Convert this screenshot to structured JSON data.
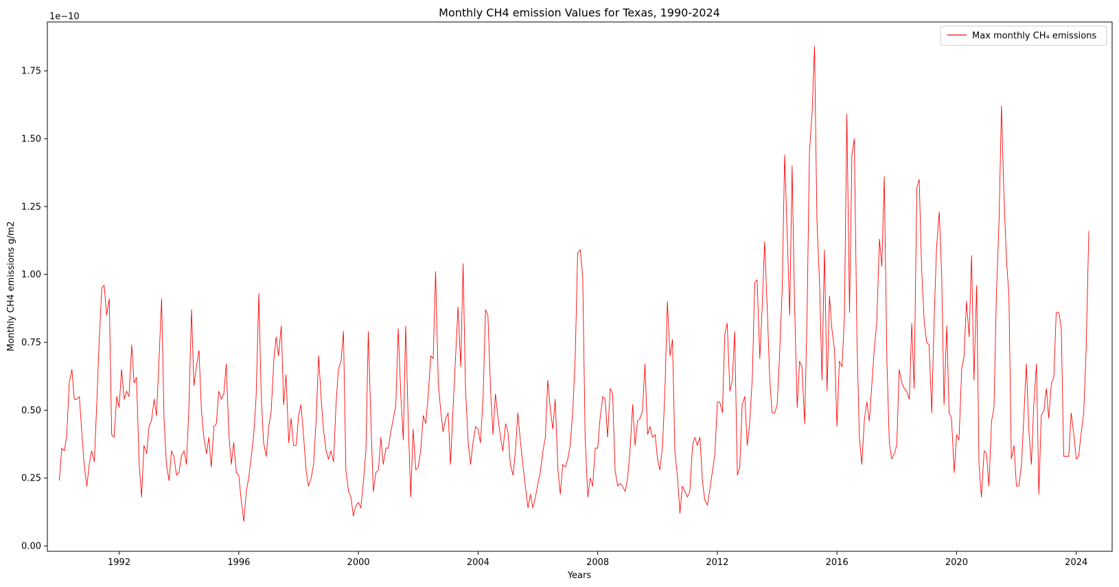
{
  "chart_data": {
    "type": "line",
    "title": "Monthly CH4 emission Values for Texas, 1990-2024",
    "xlabel": "Years",
    "ylabel": "Monthly CH4 emissions g/m2",
    "y_offset_label": "1e−10",
    "xlim": [
      1989.6,
      2025.2
    ],
    "ylim": [
      -0.02,
      1.93
    ],
    "x_ticks": [
      1992,
      1996,
      2000,
      2004,
      2008,
      2012,
      2016,
      2020,
      2024
    ],
    "y_ticks": [
      0.0,
      0.25,
      0.5,
      0.75,
      1.0,
      1.25,
      1.5,
      1.75
    ],
    "y_tick_labels": [
      "0.00",
      "0.25",
      "0.50",
      "0.75",
      "1.00",
      "1.25",
      "1.50",
      "1.75"
    ],
    "grid": false,
    "legend_position": "top-right",
    "series": [
      {
        "name": "Max monthly CH₄ emissions",
        "color": "#ff0000",
        "x": [
          1990.0,
          1990.08,
          1990.17,
          1990.25,
          1990.33,
          1990.42,
          1990.5,
          1990.58,
          1990.67,
          1990.75,
          1990.83,
          1990.92,
          1991.0,
          1991.08,
          1991.17,
          1991.25,
          1991.33,
          1991.42,
          1991.5,
          1991.58,
          1991.67,
          1991.75,
          1991.83,
          1991.92,
          1992.0,
          1992.08,
          1992.17,
          1992.25,
          1992.33,
          1992.42,
          1992.5,
          1992.58,
          1992.67,
          1992.75,
          1992.83,
          1992.92,
          1993.0,
          1993.08,
          1993.17,
          1993.25,
          1993.33,
          1993.42,
          1993.5,
          1993.58,
          1993.67,
          1993.75,
          1993.83,
          1993.92,
          1994.0,
          1994.08,
          1994.17,
          1994.25,
          1994.33,
          1994.42,
          1994.5,
          1994.58,
          1994.67,
          1994.75,
          1994.83,
          1994.92,
          1995.0,
          1995.08,
          1995.17,
          1995.25,
          1995.33,
          1995.42,
          1995.5,
          1995.58,
          1995.67,
          1995.75,
          1995.83,
          1995.92,
          1996.0,
          1996.08,
          1996.17,
          1996.25,
          1996.33,
          1996.42,
          1996.5,
          1996.58,
          1996.67,
          1996.75,
          1996.83,
          1996.92,
          1997.0,
          1997.08,
          1997.17,
          1997.25,
          1997.33,
          1997.42,
          1997.5,
          1997.58,
          1997.67,
          1997.75,
          1997.83,
          1997.92,
          1998.0,
          1998.08,
          1998.17,
          1998.25,
          1998.33,
          1998.42,
          1998.5,
          1998.58,
          1998.67,
          1998.75,
          1998.83,
          1998.92,
          1999.0,
          1999.08,
          1999.17,
          1999.25,
          1999.33,
          1999.42,
          1999.5,
          1999.58,
          1999.67,
          1999.75,
          1999.83,
          1999.92,
          2000.0,
          2000.08,
          2000.17,
          2000.25,
          2000.33,
          2000.42,
          2000.5,
          2000.58,
          2000.67,
          2000.75,
          2000.83,
          2000.92,
          2001.0,
          2001.08,
          2001.17,
          2001.25,
          2001.33,
          2001.42,
          2001.5,
          2001.58,
          2001.67,
          2001.75,
          2001.83,
          2001.92,
          2002.0,
          2002.08,
          2002.17,
          2002.25,
          2002.33,
          2002.42,
          2002.5,
          2002.58,
          2002.67,
          2002.75,
          2002.83,
          2002.92,
          2003.0,
          2003.08,
          2003.17,
          2003.25,
          2003.33,
          2003.42,
          2003.5,
          2003.58,
          2003.67,
          2003.75,
          2003.83,
          2003.92,
          2004.0,
          2004.08,
          2004.17,
          2004.25,
          2004.33,
          2004.42,
          2004.5,
          2004.58,
          2004.67,
          2004.75,
          2004.83,
          2004.92,
          2005.0,
          2005.08,
          2005.17,
          2005.25,
          2005.33,
          2005.42,
          2005.5,
          2005.58,
          2005.67,
          2005.75,
          2005.83,
          2005.92,
          2006.0,
          2006.08,
          2006.17,
          2006.25,
          2006.33,
          2006.42,
          2006.5,
          2006.58,
          2006.67,
          2006.75,
          2006.83,
          2006.92,
          2007.0,
          2007.08,
          2007.17,
          2007.25,
          2007.33,
          2007.42,
          2007.5,
          2007.58,
          2007.67,
          2007.75,
          2007.83,
          2007.92,
          2008.0,
          2008.08,
          2008.17,
          2008.25,
          2008.33,
          2008.42,
          2008.5,
          2008.58,
          2008.67,
          2008.75,
          2008.83,
          2008.92,
          2009.0,
          2009.08,
          2009.17,
          2009.25,
          2009.33,
          2009.42,
          2009.5,
          2009.58,
          2009.67,
          2009.75,
          2009.83,
          2009.92,
          2010.0,
          2010.08,
          2010.17,
          2010.25,
          2010.33,
          2010.42,
          2010.5,
          2010.58,
          2010.67,
          2010.75,
          2010.83,
          2010.92,
          2011.0,
          2011.08,
          2011.17,
          2011.25,
          2011.33,
          2011.42,
          2011.5,
          2011.58,
          2011.67,
          2011.75,
          2011.83,
          2011.92,
          2012.0,
          2012.08,
          2012.17,
          2012.25,
          2012.33,
          2012.42,
          2012.5,
          2012.58,
          2012.67,
          2012.75,
          2012.83,
          2012.92,
          2013.0,
          2013.08,
          2013.17,
          2013.25,
          2013.33,
          2013.42,
          2013.5,
          2013.58,
          2013.67,
          2013.75,
          2013.83,
          2013.92,
          2014.0,
          2014.08,
          2014.17,
          2014.25,
          2014.33,
          2014.42,
          2014.5,
          2014.58,
          2014.67,
          2014.75,
          2014.83,
          2014.92,
          2015.0,
          2015.08,
          2015.17,
          2015.25,
          2015.33,
          2015.42,
          2015.5,
          2015.58,
          2015.67,
          2015.75,
          2015.83,
          2015.92,
          2016.0,
          2016.08,
          2016.17,
          2016.25,
          2016.33,
          2016.42,
          2016.5,
          2016.58,
          2016.67,
          2016.75,
          2016.83,
          2016.92,
          2017.0,
          2017.08,
          2017.17,
          2017.25,
          2017.33,
          2017.42,
          2017.5,
          2017.58,
          2017.67,
          2017.75,
          2017.83,
          2017.92,
          2018.0,
          2018.08,
          2018.17,
          2018.25,
          2018.33,
          2018.42,
          2018.5,
          2018.58,
          2018.67,
          2018.75,
          2018.83,
          2018.92,
          2019.0,
          2019.08,
          2019.17,
          2019.25,
          2019.33,
          2019.42,
          2019.5,
          2019.58,
          2019.67,
          2019.75,
          2019.83,
          2019.92,
          2020.0,
          2020.08,
          2020.17,
          2020.25,
          2020.33,
          2020.42,
          2020.5,
          2020.58,
          2020.67,
          2020.75,
          2020.83,
          2020.92,
          2021.0,
          2021.08,
          2021.17,
          2021.25,
          2021.33,
          2021.42,
          2021.5,
          2021.58,
          2021.67,
          2021.75,
          2021.83,
          2021.92,
          2022.0,
          2022.08,
          2022.17,
          2022.25,
          2022.33,
          2022.42,
          2022.5,
          2022.58,
          2022.67,
          2022.75,
          2022.83,
          2022.92,
          2023.0,
          2023.08,
          2023.17,
          2023.25,
          2023.33,
          2023.42,
          2023.5,
          2023.58,
          2023.67,
          2023.75,
          2023.83,
          2023.92,
          2024.0,
          2024.08,
          2024.17,
          2024.25,
          2024.33,
          2024.42
        ],
        "values": [
          0.24,
          0.36,
          0.35,
          0.41,
          0.6,
          0.65,
          0.54,
          0.54,
          0.55,
          0.42,
          0.3,
          0.22,
          0.3,
          0.35,
          0.31,
          0.52,
          0.75,
          0.95,
          0.96,
          0.85,
          0.91,
          0.41,
          0.4,
          0.55,
          0.51,
          0.65,
          0.54,
          0.57,
          0.55,
          0.74,
          0.6,
          0.62,
          0.3,
          0.18,
          0.37,
          0.34,
          0.44,
          0.46,
          0.54,
          0.48,
          0.68,
          0.91,
          0.47,
          0.3,
          0.24,
          0.35,
          0.33,
          0.26,
          0.27,
          0.33,
          0.35,
          0.3,
          0.5,
          0.87,
          0.59,
          0.66,
          0.72,
          0.5,
          0.4,
          0.34,
          0.4,
          0.29,
          0.44,
          0.45,
          0.57,
          0.54,
          0.56,
          0.67,
          0.41,
          0.3,
          0.38,
          0.27,
          0.26,
          0.17,
          0.09,
          0.2,
          0.25,
          0.33,
          0.41,
          0.55,
          0.93,
          0.55,
          0.38,
          0.33,
          0.44,
          0.49,
          0.68,
          0.77,
          0.7,
          0.81,
          0.52,
          0.63,
          0.38,
          0.47,
          0.37,
          0.37,
          0.48,
          0.52,
          0.4,
          0.28,
          0.22,
          0.25,
          0.3,
          0.45,
          0.7,
          0.55,
          0.43,
          0.35,
          0.32,
          0.35,
          0.31,
          0.52,
          0.65,
          0.68,
          0.79,
          0.28,
          0.2,
          0.18,
          0.11,
          0.15,
          0.16,
          0.14,
          0.24,
          0.35,
          0.79,
          0.45,
          0.2,
          0.27,
          0.28,
          0.4,
          0.3,
          0.36,
          0.36,
          0.42,
          0.47,
          0.52,
          0.8,
          0.55,
          0.39,
          0.81,
          0.44,
          0.18,
          0.43,
          0.28,
          0.29,
          0.35,
          0.48,
          0.45,
          0.55,
          0.7,
          0.69,
          1.01,
          0.6,
          0.5,
          0.42,
          0.47,
          0.49,
          0.3,
          0.52,
          0.7,
          0.88,
          0.66,
          1.04,
          0.58,
          0.38,
          0.3,
          0.38,
          0.44,
          0.43,
          0.38,
          0.55,
          0.87,
          0.85,
          0.57,
          0.41,
          0.56,
          0.47,
          0.4,
          0.35,
          0.45,
          0.42,
          0.3,
          0.26,
          0.35,
          0.49,
          0.38,
          0.3,
          0.22,
          0.14,
          0.19,
          0.14,
          0.18,
          0.23,
          0.27,
          0.35,
          0.4,
          0.61,
          0.5,
          0.43,
          0.54,
          0.28,
          0.19,
          0.3,
          0.29,
          0.32,
          0.37,
          0.5,
          0.7,
          1.08,
          1.09,
          0.99,
          0.4,
          0.18,
          0.25,
          0.22,
          0.36,
          0.36,
          0.47,
          0.55,
          0.54,
          0.4,
          0.58,
          0.56,
          0.28,
          0.22,
          0.23,
          0.22,
          0.2,
          0.25,
          0.35,
          0.52,
          0.37,
          0.46,
          0.47,
          0.5,
          0.67,
          0.41,
          0.44,
          0.4,
          0.41,
          0.32,
          0.28,
          0.37,
          0.58,
          0.9,
          0.7,
          0.76,
          0.35,
          0.25,
          0.12,
          0.22,
          0.2,
          0.18,
          0.2,
          0.37,
          0.4,
          0.37,
          0.4,
          0.24,
          0.17,
          0.15,
          0.21,
          0.27,
          0.34,
          0.53,
          0.53,
          0.49,
          0.78,
          0.82,
          0.57,
          0.61,
          0.79,
          0.26,
          0.29,
          0.52,
          0.55,
          0.37,
          0.45,
          0.62,
          0.97,
          0.98,
          0.69,
          0.88,
          1.12,
          0.87,
          0.62,
          0.49,
          0.49,
          0.52,
          0.7,
          0.95,
          1.44,
          1.17,
          0.85,
          1.4,
          0.9,
          0.51,
          0.68,
          0.66,
          0.45,
          0.85,
          1.45,
          1.6,
          1.84,
          1.2,
          0.96,
          0.61,
          1.09,
          0.57,
          0.92,
          0.8,
          0.72,
          0.44,
          0.68,
          0.66,
          0.85,
          1.59,
          0.86,
          1.44,
          1.5,
          0.75,
          0.4,
          0.3,
          0.47,
          0.53,
          0.46,
          0.6,
          0.73,
          0.82,
          1.13,
          1.03,
          1.36,
          0.68,
          0.38,
          0.32,
          0.34,
          0.37,
          0.65,
          0.6,
          0.58,
          0.57,
          0.54,
          0.82,
          0.58,
          1.32,
          1.35,
          1.02,
          0.82,
          0.75,
          0.74,
          0.49,
          0.84,
          1.1,
          1.23,
          1.0,
          0.52,
          0.81,
          0.49,
          0.47,
          0.27,
          0.41,
          0.39,
          0.65,
          0.7,
          0.9,
          0.77,
          1.07,
          0.61,
          0.96,
          0.3,
          0.18,
          0.35,
          0.34,
          0.22,
          0.46,
          0.51,
          0.92,
          1.2,
          1.62,
          1.3,
          1.05,
          0.92,
          0.32,
          0.37,
          0.22,
          0.22,
          0.3,
          0.48,
          0.67,
          0.42,
          0.3,
          0.52,
          0.67,
          0.19,
          0.48,
          0.5,
          0.58,
          0.47,
          0.6,
          0.62,
          0.86,
          0.86,
          0.8,
          0.33,
          0.33,
          0.33,
          0.49,
          0.41,
          0.32,
          0.33,
          0.42,
          0.49,
          0.72,
          1.16
        ]
      }
    ]
  }
}
